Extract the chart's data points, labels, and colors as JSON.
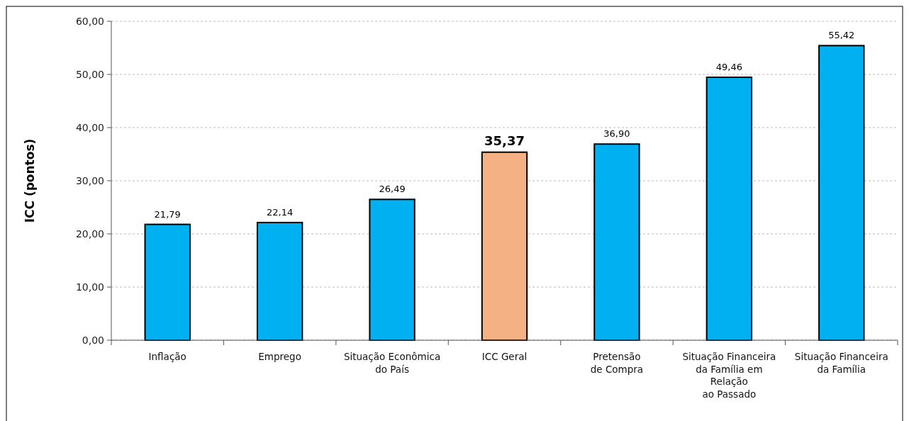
{
  "chart_data": {
    "type": "bar",
    "ylabel": "ICC (pontos)",
    "categories": [
      "Inflação",
      "Emprego",
      "Situação Econômica\ndo País",
      "ICC Geral",
      "Pretensão\nde Compra",
      "Situação Financeira\nda Família em\nRelação\nao Passado",
      "Situação Financeira\nda Família"
    ],
    "values": [
      21.79,
      22.14,
      26.49,
      35.37,
      36.9,
      49.46,
      55.42
    ],
    "colors": [
      "#00b0f0",
      "#00b0f0",
      "#00b0f0",
      "#f4b183",
      "#00b0f0",
      "#00b0f0",
      "#00b0f0"
    ],
    "value_labels": [
      "21,79",
      "22,14",
      "26,49",
      "35,37",
      "36,90",
      "49,46",
      "55,42"
    ],
    "ylim": [
      0,
      60
    ],
    "yticks": [
      {
        "value": 0,
        "label": "0,00"
      },
      {
        "value": 10,
        "label": "10,00"
      },
      {
        "value": 20,
        "label": "20,00"
      },
      {
        "value": 30,
        "label": "30,00"
      },
      {
        "value": 40,
        "label": "40,00"
      },
      {
        "value": 50,
        "label": "50,00"
      },
      {
        "value": 60,
        "label": "60,00"
      }
    ],
    "grid": "y"
  }
}
